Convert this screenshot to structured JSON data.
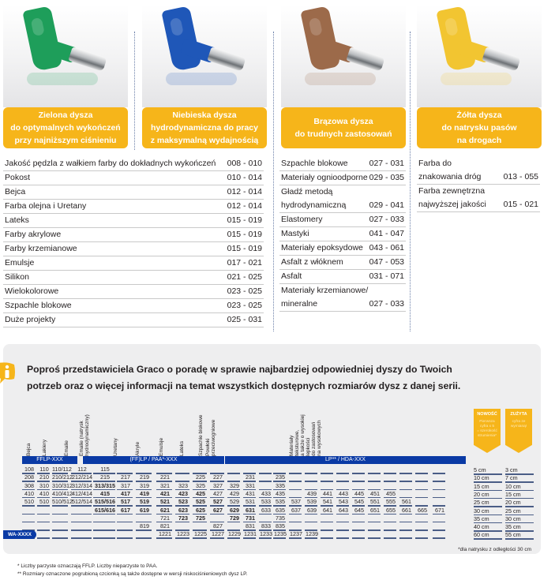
{
  "cards": [
    {
      "color_name": "green",
      "nozzle_color": "#1e9e5a",
      "title_lines": [
        "Zielona dysza",
        "do optymalnych wykończeń",
        "przy najniższym ciśnieniu"
      ],
      "applications": [
        {
          "name": "Jakość pędzla z wałkiem farby do dokładnych wykończeń",
          "range": "008 - 010"
        },
        {
          "name": "Pokost",
          "range": "010 - 014"
        },
        {
          "name": "Bejca",
          "range": "012 - 014"
        },
        {
          "name": "Farba olejna i Uretany",
          "range": "012 - 014"
        },
        {
          "name": "Lateks",
          "range": "015 - 019"
        },
        {
          "name": "Farby akrylowe",
          "range": "015 - 019"
        },
        {
          "name": "Farby krzemianowe",
          "range": "015 - 019"
        },
        {
          "name": "Emulsje",
          "range": "017 - 021"
        },
        {
          "name": "Silikon",
          "range": "021 - 025"
        },
        {
          "name": "Wielokolorowe",
          "range": "023 - 025"
        },
        {
          "name": "Szpachle blokowe",
          "range": "023 - 025"
        },
        {
          "name": "Duże projekty",
          "range": "025 - 031"
        }
      ]
    },
    {
      "color_name": "blue",
      "nozzle_color": "#1f57b8",
      "title_lines": [
        "Niebieska dysza",
        "hydrodynamiczna do pracy",
        "z maksymalną wydajnością"
      ],
      "applications": []
    },
    {
      "color_name": "brown",
      "nozzle_color": "#9c6a4a",
      "title_lines": [
        "Brązowa dysza",
        "do trudnych zastosowań"
      ],
      "applications": [
        {
          "name": "Szpachle blokowe",
          "range": "027 - 031"
        },
        {
          "name": "Materiały ognioodporne",
          "range": "029 - 035"
        },
        {
          "name": "Gładź metodą\nhydrodynamiczną",
          "range": "029 - 041"
        },
        {
          "name": "Elastomery",
          "range": "027 - 033"
        },
        {
          "name": "Mastyki",
          "range": "041 - 047"
        },
        {
          "name": "Materiały epoksydowe",
          "range": "043 - 061"
        },
        {
          "name": "Asfalt z włóknem",
          "range": "047 - 053"
        },
        {
          "name": "Asfalt",
          "range": "031 - 071"
        },
        {
          "name": "Materiały krzemianowe/\nmineralne",
          "range": "027 - 033"
        }
      ]
    },
    {
      "color_name": "yellow",
      "nozzle_color": "#f2c531",
      "title_lines": [
        "Żółta dysza",
        "do natrysku pasów",
        "na drogach"
      ],
      "applications": [
        {
          "name": "Farba do\nznakowania dróg",
          "range": "013 - 055"
        },
        {
          "name": "Farba zewnętrzna\nnajwyższej jakości",
          "range": "015 - 021"
        }
      ]
    }
  ],
  "info": {
    "line1": "Poproś przedstawiciela Graco o poradę w sprawie najbardziej odpowiedniej dyszy do Twoich",
    "line2": "potrzeb oraz o więcej informacji na temat wszystkich dostępnych rozmiarów dysz z danej serii."
  },
  "size_table": {
    "column_headers": [
      "Bejca",
      "Lakiery",
      "Emalie",
      "Emalie (natrysk\nhydrodynamiczny)",
      "Uretany",
      "Akryle",
      "Emulsje",
      "Lateks",
      "Szpachle blokowe",
      "Powłoki\nprzeciwogniowe",
      "Materiały\nteksturowe,\na także o wysokiej\nlepkości\ndo zastosowań\nna wysokowych"
    ],
    "series_bars": [
      {
        "label": "FFLP-XXX"
      },
      {
        "label": "(FF)LP / PAA*-XXX"
      },
      {
        "label": "LP** / HDA-XXX"
      }
    ],
    "wa_label": "WA-XXXX",
    "rows": [
      [
        [
          "108",
          0
        ],
        [
          "110",
          0
        ],
        [
          "110/112",
          0
        ],
        [
          "112",
          0
        ],
        [
          "115",
          0
        ],
        [
          "",
          0
        ],
        [
          "",
          0
        ],
        [
          "",
          0
        ],
        [
          "",
          0
        ],
        [
          "",
          0
        ],
        [
          "",
          0
        ],
        [
          "",
          0
        ],
        [
          "",
          0
        ],
        [
          "",
          0
        ],
        [
          "",
          0
        ],
        [
          "",
          0
        ],
        [
          "",
          0
        ],
        [
          "",
          0
        ],
        [
          "",
          0
        ],
        [
          "",
          0
        ],
        [
          "",
          0
        ],
        [
          "",
          0
        ],
        [
          "",
          0
        ],
        [
          "",
          0
        ],
        [
          "",
          0
        ]
      ],
      [
        [
          "208",
          0
        ],
        [
          "210",
          0
        ],
        [
          "210/212",
          0
        ],
        [
          "212/214",
          0
        ],
        [
          "215",
          0
        ],
        [
          "217",
          0
        ],
        [
          "219",
          0
        ],
        [
          "221",
          0
        ],
        [
          "",
          0
        ],
        [
          "225",
          0
        ],
        [
          "227",
          0
        ],
        [
          "",
          0
        ],
        [
          "231",
          0
        ],
        [
          "",
          0
        ],
        [
          "235",
          0
        ],
        [
          "",
          0
        ],
        [
          "",
          0
        ],
        [
          "",
          0
        ],
        [
          "",
          0
        ],
        [
          "",
          0
        ],
        [
          "",
          0
        ],
        [
          "",
          0
        ],
        [
          "",
          0
        ],
        [
          "",
          0
        ],
        [
          "",
          0
        ]
      ],
      [
        [
          "308",
          0
        ],
        [
          "310",
          0
        ],
        [
          "310/312",
          0
        ],
        [
          "312/314",
          0
        ],
        [
          "313/315",
          1
        ],
        [
          "317",
          0
        ],
        [
          "319",
          0
        ],
        [
          "321",
          0
        ],
        [
          "323",
          0
        ],
        [
          "325",
          0
        ],
        [
          "327",
          0
        ],
        [
          "329",
          0
        ],
        [
          "331",
          0
        ],
        [
          "",
          0
        ],
        [
          "335",
          0
        ],
        [
          "",
          0
        ],
        [
          "",
          0
        ],
        [
          "",
          0
        ],
        [
          "",
          0
        ],
        [
          "",
          0
        ],
        [
          "",
          0
        ],
        [
          "",
          0
        ],
        [
          "",
          0
        ],
        [
          "",
          0
        ],
        [
          "",
          0
        ]
      ],
      [
        [
          "410",
          0
        ],
        [
          "410",
          0
        ],
        [
          "410/412",
          0
        ],
        [
          "412/414",
          0
        ],
        [
          "415",
          1
        ],
        [
          "417",
          1
        ],
        [
          "419",
          1
        ],
        [
          "421",
          1
        ],
        [
          "423",
          1
        ],
        [
          "425",
          1
        ],
        [
          "427",
          0
        ],
        [
          "429",
          0
        ],
        [
          "431",
          0
        ],
        [
          "433",
          0
        ],
        [
          "435",
          0
        ],
        [
          "",
          0
        ],
        [
          "439",
          0
        ],
        [
          "441",
          0
        ],
        [
          "443",
          0
        ],
        [
          "445",
          0
        ],
        [
          "451",
          0
        ],
        [
          "455",
          0
        ],
        [
          "",
          0
        ],
        [
          "",
          0
        ],
        [
          "",
          0
        ]
      ],
      [
        [
          "510",
          0
        ],
        [
          "510",
          0
        ],
        [
          "510/512",
          0
        ],
        [
          "512/514",
          0
        ],
        [
          "515/516",
          1
        ],
        [
          "517",
          1
        ],
        [
          "519",
          1
        ],
        [
          "521",
          1
        ],
        [
          "523",
          1
        ],
        [
          "525",
          1
        ],
        [
          "527",
          1
        ],
        [
          "529",
          0
        ],
        [
          "531",
          0
        ],
        [
          "533",
          0
        ],
        [
          "535",
          0
        ],
        [
          "537",
          0
        ],
        [
          "539",
          0
        ],
        [
          "541",
          0
        ],
        [
          "543",
          0
        ],
        [
          "545",
          0
        ],
        [
          "551",
          0
        ],
        [
          "555",
          0
        ],
        [
          "561",
          0
        ],
        [
          "",
          0
        ],
        [
          "",
          0
        ]
      ],
      [
        [
          "",
          0
        ],
        [
          "",
          0
        ],
        [
          "",
          0
        ],
        [
          "",
          0
        ],
        [
          "615/616",
          1
        ],
        [
          "617",
          1
        ],
        [
          "619",
          1
        ],
        [
          "621",
          1
        ],
        [
          "623",
          1
        ],
        [
          "625",
          1
        ],
        [
          "627",
          1
        ],
        [
          "629",
          1
        ],
        [
          "631",
          1
        ],
        [
          "633",
          0
        ],
        [
          "635",
          0
        ],
        [
          "637",
          0
        ],
        [
          "639",
          0
        ],
        [
          "641",
          0
        ],
        [
          "643",
          0
        ],
        [
          "645",
          0
        ],
        [
          "651",
          0
        ],
        [
          "655",
          0
        ],
        [
          "661",
          0
        ],
        [
          "665",
          0
        ],
        [
          "671",
          0
        ]
      ],
      [
        [
          "",
          0
        ],
        [
          "",
          0
        ],
        [
          "",
          0
        ],
        [
          "",
          0
        ],
        [
          "",
          0
        ],
        [
          "",
          0
        ],
        [
          "",
          0
        ],
        [
          "721",
          0
        ],
        [
          "723",
          1
        ],
        [
          "725",
          1
        ],
        [
          "",
          0
        ],
        [
          "729",
          1
        ],
        [
          "731",
          1
        ],
        [
          "",
          0
        ],
        [
          "735",
          0
        ],
        [
          "",
          0
        ],
        [
          "",
          0
        ],
        [
          "",
          0
        ],
        [
          "",
          0
        ],
        [
          "",
          0
        ],
        [
          "",
          0
        ],
        [
          "",
          0
        ],
        [
          "",
          0
        ],
        [
          "",
          0
        ],
        [
          "",
          0
        ]
      ],
      [
        [
          "",
          0
        ],
        [
          "",
          0
        ],
        [
          "",
          0
        ],
        [
          "",
          0
        ],
        [
          "",
          0
        ],
        [
          "",
          0
        ],
        [
          "819",
          0
        ],
        [
          "821",
          0
        ],
        [
          "",
          0
        ],
        [
          "",
          0
        ],
        [
          "827",
          0
        ],
        [
          "",
          0
        ],
        [
          "831",
          0
        ],
        [
          "833",
          0
        ],
        [
          "835",
          0
        ],
        [
          "",
          0
        ],
        [
          "",
          0
        ],
        [
          "",
          0
        ],
        [
          "",
          0
        ],
        [
          "",
          0
        ],
        [
          "",
          0
        ],
        [
          "",
          0
        ],
        [
          "",
          0
        ],
        [
          "",
          0
        ],
        [
          "",
          0
        ]
      ],
      [
        [
          "",
          0
        ],
        [
          "",
          0
        ],
        [
          "",
          0
        ],
        [
          "",
          0
        ],
        [
          "",
          0
        ],
        [
          "",
          0
        ],
        [
          "",
          0
        ],
        [
          "1221",
          0
        ],
        [
          "1223",
          0
        ],
        [
          "1225",
          0
        ],
        [
          "1227",
          0
        ],
        [
          "1229",
          0
        ],
        [
          "1231",
          0
        ],
        [
          "1233",
          0
        ],
        [
          "1235",
          0
        ],
        [
          "1237",
          0
        ],
        [
          "1239",
          0
        ],
        [
          "",
          0
        ],
        [
          "",
          0
        ],
        [
          "",
          0
        ],
        [
          "",
          0
        ],
        [
          "",
          0
        ],
        [
          "",
          0
        ],
        [
          "",
          0
        ],
        [
          "",
          0
        ]
      ]
    ],
    "ribbons": [
      {
        "title": "NOWOŚĆ",
        "subtitle": "Pierwsza\ncyfra x 5\n= szerokość\nstrumienia*"
      },
      {
        "title": "ZUŻYTA",
        "subtitle": "cyfra ze\nwymianą!"
      }
    ],
    "width_new": [
      "5 cm",
      "10 cm",
      "15 cm",
      "20 cm",
      "25 cm",
      "30 cm",
      "35 cm",
      "40 cm",
      "60 cm"
    ],
    "width_worn": [
      "3 cm",
      "7 cm",
      "10 cm",
      "15 cm",
      "20 cm",
      "25 cm",
      "30 cm",
      "35 cm",
      "55 cm"
    ],
    "distance_note": "*dla natrysku z odległości 30 cm"
  },
  "footnotes": [
    "*   Liczby parzyste oznaczają FFLP. Liczby nieparzyste to PAA.",
    "**  Rozmiary oznaczone pogrubioną czcionką są także dostępne w wersji niskociśnieniowych dysz LP."
  ],
  "colors": {
    "accent_yellow": "#f6b51a",
    "brand_blue": "#0a3aa5",
    "panel_gray": "#eeeeef"
  }
}
